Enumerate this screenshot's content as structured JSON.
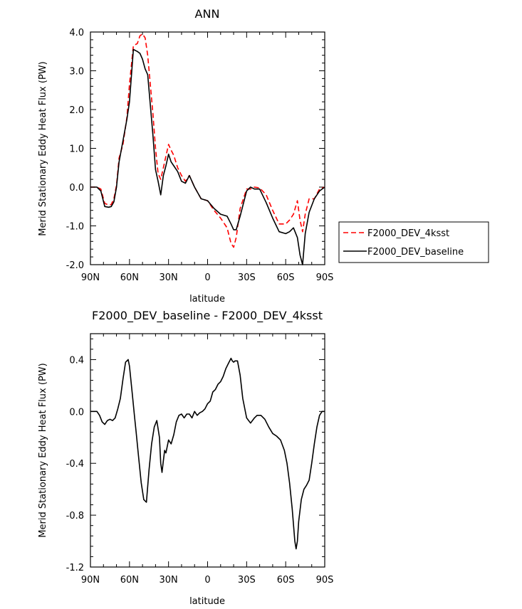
{
  "chart_data": [
    {
      "type": "line",
      "title": "ANN",
      "xlabel": "latitude",
      "ylabel": "Merid Stationary Eddy Heat Flux (PW)",
      "xticks": [
        "90N",
        "60N",
        "30N",
        "0",
        "30S",
        "60S",
        "90S"
      ],
      "yticks": [
        "4.0",
        "3.0",
        "2.0",
        "1.0",
        "0.0",
        "-1.0",
        "-2.0"
      ],
      "xlim": [
        90,
        -90
      ],
      "ylim": [
        -2.0,
        4.0
      ],
      "grid": false,
      "legend_position": "right-outside",
      "series": [
        {
          "name": "F2000_DEV_4ksst",
          "color": "#ff0000",
          "dash": "dashed",
          "x": [
            90,
            85,
            82,
            79,
            76,
            74,
            72,
            70,
            68,
            65,
            62,
            60,
            57,
            54,
            52,
            50,
            48,
            46,
            42,
            40,
            38,
            36,
            34,
            32,
            30,
            28,
            26,
            23,
            20,
            17,
            14,
            10,
            5,
            0,
            -5,
            -10,
            -15,
            -18,
            -20,
            -22,
            -25,
            -30,
            -33,
            -36,
            -40,
            -45,
            -50,
            -55,
            -60,
            -63,
            -66,
            -69,
            -71,
            -73,
            -75,
            -78,
            -82,
            -86,
            -90
          ],
          "y": [
            0.0,
            0.0,
            -0.05,
            -0.42,
            -0.46,
            -0.45,
            -0.3,
            0.05,
            0.75,
            1.1,
            1.8,
            2.65,
            3.65,
            3.7,
            3.9,
            3.95,
            3.85,
            3.4,
            1.9,
            1.0,
            0.35,
            0.2,
            0.5,
            0.8,
            1.1,
            0.95,
            0.82,
            0.5,
            0.3,
            0.15,
            0.3,
            0.0,
            -0.3,
            -0.35,
            -0.6,
            -0.8,
            -1.05,
            -1.45,
            -1.55,
            -1.3,
            -0.55,
            -0.05,
            -0.05,
            0.0,
            -0.02,
            -0.2,
            -0.6,
            -0.95,
            -0.95,
            -0.85,
            -0.7,
            -0.35,
            -0.85,
            -1.15,
            -0.7,
            -0.3,
            -0.3,
            -0.05,
            0.0
          ]
        },
        {
          "name": "F2000_DEV_baseline",
          "color": "#000000",
          "dash": "solid",
          "x": [
            90,
            85,
            82,
            79,
            76,
            74,
            72,
            70,
            68,
            65,
            62,
            60,
            57,
            54,
            52,
            50,
            48,
            46,
            42,
            40,
            38,
            36,
            34,
            32,
            30,
            28,
            26,
            23,
            20,
            17,
            14,
            10,
            5,
            0,
            -5,
            -10,
            -15,
            -18,
            -20,
            -22,
            -25,
            -30,
            -33,
            -36,
            -40,
            -45,
            -50,
            -55,
            -60,
            -63,
            -66,
            -69,
            -71,
            -73,
            -75,
            -78,
            -82,
            -86,
            -90
          ],
          "y": [
            0.0,
            0.0,
            -0.1,
            -0.5,
            -0.52,
            -0.5,
            -0.38,
            0.0,
            0.65,
            1.2,
            1.75,
            2.2,
            3.55,
            3.5,
            3.45,
            3.3,
            3.05,
            2.9,
            1.35,
            0.45,
            0.15,
            -0.2,
            0.3,
            0.55,
            0.85,
            0.65,
            0.55,
            0.4,
            0.15,
            0.1,
            0.3,
            0.0,
            -0.3,
            -0.35,
            -0.55,
            -0.7,
            -0.75,
            -0.95,
            -1.1,
            -1.1,
            -0.75,
            -0.1,
            0.0,
            -0.05,
            -0.05,
            -0.4,
            -0.8,
            -1.15,
            -1.2,
            -1.15,
            -1.05,
            -1.3,
            -1.75,
            -2.0,
            -1.2,
            -0.65,
            -0.3,
            -0.1,
            0.0
          ]
        }
      ]
    },
    {
      "type": "line",
      "title": "F2000_DEV_baseline - F2000_DEV_4ksst",
      "xlabel": "latitude",
      "ylabel": "Merid Stationary Eddy Heat Flux (PW)",
      "xticks": [
        "90N",
        "60N",
        "30N",
        "0",
        "30S",
        "60S",
        "90S"
      ],
      "yticks": [
        "0.4",
        "0.0",
        "-0.4",
        "-0.8",
        "-1.2"
      ],
      "xlim": [
        90,
        -90
      ],
      "ylim": [
        -1.2,
        0.6
      ],
      "grid": false,
      "series": [
        {
          "color": "#000000",
          "dash": "solid",
          "x": [
            90,
            85,
            83,
            81,
            79,
            77,
            75,
            73,
            71,
            69,
            67,
            65,
            63,
            61,
            60,
            58,
            56,
            55,
            53,
            51,
            49,
            47,
            45,
            43,
            41,
            39,
            37,
            36,
            35,
            34,
            33,
            32,
            30,
            28,
            26,
            24,
            22,
            20,
            18,
            16,
            14,
            12,
            10,
            8,
            6,
            4,
            2,
            0,
            -2,
            -4,
            -6,
            -8,
            -10,
            -12,
            -14,
            -16,
            -18,
            -19,
            -20,
            -21,
            -23,
            -25,
            -27,
            -30,
            -33,
            -36,
            -38,
            -41,
            -44,
            -47,
            -50,
            -53,
            -56,
            -59,
            -61,
            -63,
            -65,
            -67,
            -68,
            -69,
            -70,
            -72,
            -74,
            -76,
            -78,
            -80,
            -82,
            -84,
            -86,
            -88,
            -90
          ],
          "y": [
            0.0,
            0.0,
            -0.03,
            -0.08,
            -0.1,
            -0.07,
            -0.06,
            -0.07,
            -0.05,
            0.02,
            0.1,
            0.25,
            0.38,
            0.4,
            0.35,
            0.15,
            -0.05,
            -0.15,
            -0.35,
            -0.55,
            -0.68,
            -0.7,
            -0.45,
            -0.25,
            -0.12,
            -0.07,
            -0.2,
            -0.4,
            -0.47,
            -0.38,
            -0.3,
            -0.32,
            -0.22,
            -0.25,
            -0.18,
            -0.08,
            -0.03,
            -0.02,
            -0.05,
            -0.02,
            -0.02,
            -0.05,
            0.0,
            -0.03,
            -0.01,
            0.0,
            0.02,
            0.06,
            0.08,
            0.15,
            0.17,
            0.21,
            0.23,
            0.27,
            0.33,
            0.37,
            0.41,
            0.39,
            0.38,
            0.39,
            0.39,
            0.28,
            0.1,
            -0.05,
            -0.09,
            -0.05,
            -0.03,
            -0.03,
            -0.06,
            -0.12,
            -0.17,
            -0.19,
            -0.22,
            -0.3,
            -0.4,
            -0.55,
            -0.75,
            -1.0,
            -1.06,
            -1.0,
            -0.85,
            -0.68,
            -0.6,
            -0.57,
            -0.53,
            -0.4,
            -0.25,
            -0.12,
            -0.03,
            0.0,
            0.0
          ]
        }
      ]
    }
  ]
}
